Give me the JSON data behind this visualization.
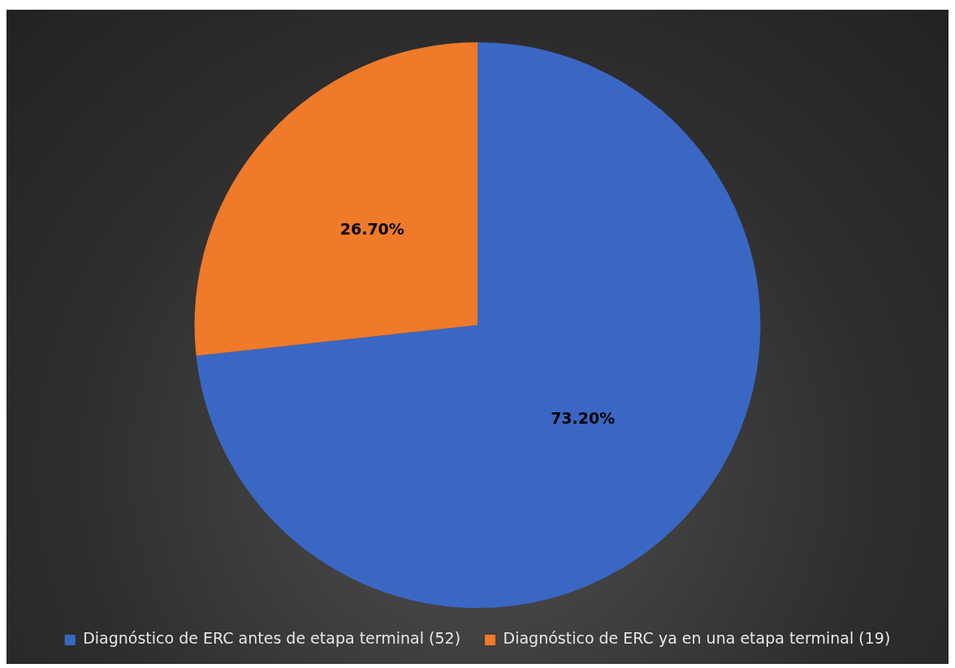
{
  "chart_data": {
    "type": "pie",
    "categories": [
      "Diagnóstico de ERC antes de etapa terminal (52)",
      "Diagnóstico de ERC ya en una etapa terminal (19)"
    ],
    "values": [
      73.2,
      26.7
    ],
    "value_labels": [
      "73.20%",
      "26.70%"
    ],
    "colors": [
      "#3a67c4",
      "#ee7a2a"
    ],
    "legend": "bottom"
  }
}
